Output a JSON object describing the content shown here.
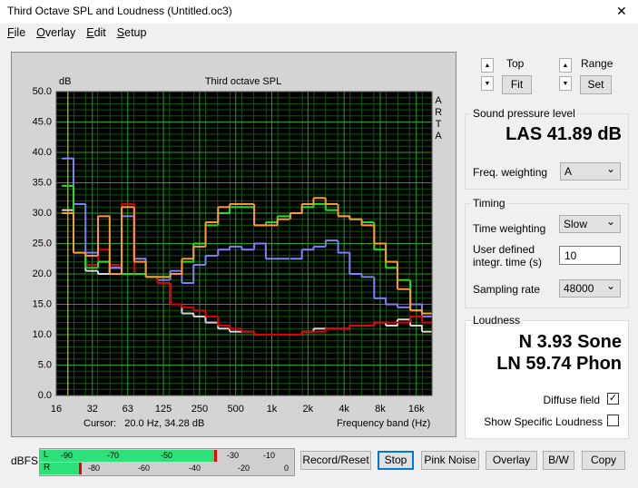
{
  "window": {
    "title": "Third Octave SPL and Loudness (Untitled.oc3)",
    "close": "✕"
  },
  "menu": [
    "File",
    "Overlay",
    "Edit",
    "Setup"
  ],
  "chart": {
    "type": "line",
    "title": "Third octave SPL",
    "y_label": "dB",
    "x_label": "Frequency band (Hz)",
    "side_label": "ARTA",
    "cursor": "Cursor:   20.0 Hz, 34.28 dB",
    "log_x": true,
    "grid": true,
    "x": [
      20,
      25,
      31.5,
      40,
      50,
      63,
      80,
      100,
      125,
      160,
      200,
      250,
      315,
      400,
      500,
      630,
      800,
      1000,
      1250,
      1600,
      2000,
      2500,
      3150,
      4000,
      5000,
      6300,
      8000,
      10000,
      12500,
      16000,
      20000
    ],
    "xlim": [
      16,
      21600
    ],
    "xticks": [
      16,
      32,
      63,
      125,
      250,
      500,
      {
        "value": 1000,
        "label": "1k"
      },
      {
        "value": 2000,
        "label": "2k"
      },
      {
        "value": 4000,
        "label": "4k"
      },
      {
        "value": 8000,
        "label": "8k"
      },
      {
        "value": 16000,
        "label": "16k"
      }
    ],
    "ylim": [
      0,
      50
    ],
    "yticks": [
      {
        "value": 0,
        "label": "0.0"
      },
      {
        "value": 5,
        "label": "5.0"
      },
      {
        "value": 10,
        "label": "10.0"
      },
      {
        "value": 15,
        "label": "15.0"
      },
      {
        "value": 20,
        "label": "20.0"
      },
      {
        "value": 25,
        "label": "25.0"
      },
      {
        "value": 30,
        "label": "30.0"
      },
      {
        "value": 35,
        "label": "35.0"
      },
      {
        "value": 40,
        "label": "40.0"
      },
      {
        "value": 45,
        "label": "45.0"
      },
      {
        "value": 50,
        "label": "50.0"
      }
    ],
    "series": [
      {
        "color": "#d8d8d8",
        "values": [
          30.5,
          23.5,
          20.5,
          20,
          21,
          20,
          20,
          19.5,
          18.5,
          15,
          13.5,
          13,
          12,
          11,
          10.5,
          10.5,
          10,
          10,
          10,
          10,
          10.5,
          11,
          11,
          11,
          11.5,
          11.5,
          12,
          11.5,
          12.5,
          11.5,
          10.5
        ]
      },
      {
        "color": "#8080ff",
        "values": [
          39,
          31.5,
          23.5,
          22,
          21,
          29.5,
          22.5,
          19.5,
          19,
          20.5,
          18.5,
          21.5,
          23,
          24,
          24.5,
          24,
          25,
          22.5,
          22.5,
          22.5,
          24,
          24.5,
          25.5,
          23.5,
          20,
          19.5,
          16,
          15,
          14.5,
          15,
          13
        ]
      },
      {
        "color": "#e00000",
        "values": [
          34.5,
          23.5,
          21.5,
          24,
          21.5,
          31.5,
          20,
          19.5,
          18.5,
          15,
          14.5,
          14,
          13,
          11.5,
          11,
          10.5,
          10,
          10,
          10,
          10,
          10.5,
          10.5,
          11,
          11,
          11.5,
          11.5,
          12,
          12,
          12,
          13,
          12
        ]
      },
      {
        "color": "#20e020",
        "values": [
          34.5,
          23.5,
          21,
          22,
          20,
          20,
          20,
          19.5,
          19.5,
          20,
          22,
          25,
          28,
          30,
          31,
          31,
          28,
          28.5,
          29.5,
          30,
          31,
          31.5,
          30.5,
          29.5,
          29,
          28.5,
          24,
          21,
          19,
          14,
          13.5
        ]
      },
      {
        "color": "#ff9933",
        "values": [
          30,
          23.5,
          23,
          29.5,
          20,
          31,
          22,
          19.5,
          19.5,
          20,
          22.5,
          24.5,
          28.5,
          31,
          31.5,
          31.5,
          28,
          28,
          29,
          30,
          31.5,
          32.5,
          31.5,
          29.5,
          29,
          28,
          25,
          22,
          17.5,
          14,
          13.5
        ]
      }
    ]
  },
  "controls": {
    "top": "Top",
    "fit": "Fit",
    "range": "Range",
    "set": "Set",
    "spl_group": "Sound pressure level",
    "spl": "LAS 41.89 dB",
    "freq_weighting": "Freq. weighting",
    "freq_weighting_value": "A",
    "timing_group": "Timing",
    "time_weighting": "Time weighting",
    "time_weighting_value": "Slow",
    "integr_time": "User defined integr. time (s)",
    "integr_time_value": "10",
    "sampling_rate": "Sampling rate",
    "sampling_rate_value": "48000",
    "loudness_group": "Loudness",
    "n": "N 3.93 Sone",
    "ln": "LN 59.74 Phon",
    "diffuse": "Diffuse field",
    "specific": "Show Specific Loudness"
  },
  "meter": {
    "label": "dBFS",
    "l": "L",
    "r": "R",
    "l_scale": [
      "-90",
      "-70",
      "-50",
      "-30",
      "-10"
    ],
    "r_scale": [
      "-80",
      "-60",
      "-40",
      "-20",
      "0"
    ]
  },
  "buttons": [
    "Record/Reset",
    "Stop",
    "Pink Noise",
    "Overlay",
    "B/W",
    "Copy"
  ]
}
